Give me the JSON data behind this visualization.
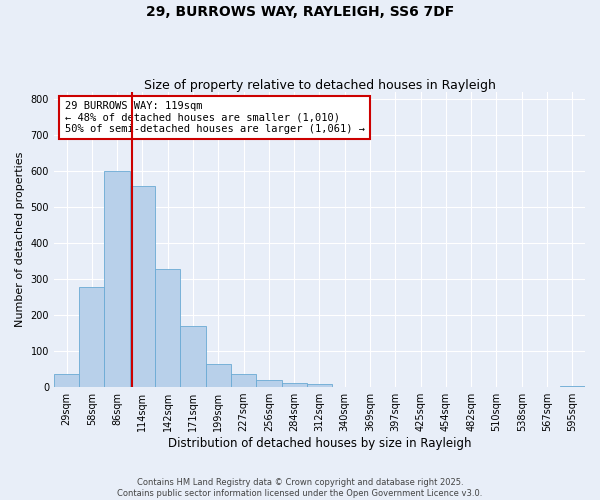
{
  "title1": "29, BURROWS WAY, RAYLEIGH, SS6 7DF",
  "title2": "Size of property relative to detached houses in Rayleigh",
  "xlabel": "Distribution of detached houses by size in Rayleigh",
  "ylabel": "Number of detached properties",
  "bin_labels": [
    "29sqm",
    "58sqm",
    "86sqm",
    "114sqm",
    "142sqm",
    "171sqm",
    "199sqm",
    "227sqm",
    "256sqm",
    "284sqm",
    "312sqm",
    "340sqm",
    "369sqm",
    "397sqm",
    "425sqm",
    "454sqm",
    "482sqm",
    "510sqm",
    "538sqm",
    "567sqm",
    "595sqm"
  ],
  "bar_values": [
    35,
    278,
    600,
    560,
    328,
    170,
    65,
    35,
    20,
    10,
    8,
    0,
    0,
    0,
    0,
    0,
    0,
    0,
    0,
    0,
    3
  ],
  "bar_color": "#b8d0ea",
  "bar_edgecolor": "#6aaad4",
  "property_line_bin": 3.1,
  "property_line_color": "#cc0000",
  "annotation_text": "29 BURROWS WAY: 119sqm\n← 48% of detached houses are smaller (1,010)\n50% of semi-detached houses are larger (1,061) →",
  "annotation_box_edgecolor": "#cc0000",
  "annotation_box_facecolor": "#ffffff",
  "ylim": [
    0,
    820
  ],
  "yticks": [
    0,
    100,
    200,
    300,
    400,
    500,
    600,
    700,
    800
  ],
  "background_color": "#e8eef8",
  "grid_color": "#ffffff",
  "footer_line1": "Contains HM Land Registry data © Crown copyright and database right 2025.",
  "footer_line2": "Contains public sector information licensed under the Open Government Licence v3.0.",
  "title1_fontsize": 10,
  "title2_fontsize": 9,
  "xlabel_fontsize": 8.5,
  "ylabel_fontsize": 8,
  "tick_fontsize": 7,
  "annotation_fontsize": 7.5,
  "footer_fontsize": 6
}
